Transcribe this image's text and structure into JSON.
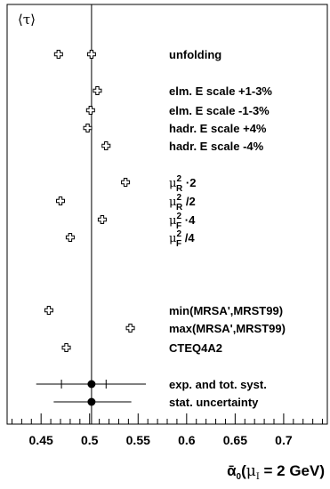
{
  "chart_data": {
    "type": "scatter",
    "title": "",
    "ylabel": "⟨τ⟩",
    "xlabel": {
      "alpha": "ᾱ",
      "sub0": "0",
      "paren_open": "(",
      "mu": "μ",
      "sub_I": "I",
      "rest": " = 2 GeV)"
    },
    "xlim": [
      0.415,
      0.745
    ],
    "x_ticks": [
      "0.45",
      "0.5",
      "0.55",
      "0.6",
      "0.65",
      "0.7"
    ],
    "reference_line": 0.502,
    "points": [
      {
        "label": "unfolding",
        "values": [
          0.468,
          0.502
        ]
      },
      {
        "label": "elm. E scale +1-3%",
        "values": [
          0.508
        ]
      },
      {
        "label": "elm. E scale -1-3%",
        "values": [
          0.501
        ]
      },
      {
        "label": "hadr. E scale +4%",
        "values": [
          0.498
        ]
      },
      {
        "label": "hadr. E scale -4%",
        "values": [
          0.517
        ]
      },
      {
        "label_parts": [
          "μ",
          "R",
          "2",
          " ·2"
        ],
        "values": [
          0.537
        ]
      },
      {
        "label_parts": [
          "μ",
          "R",
          "2",
          " /2"
        ],
        "values": [
          0.47
        ]
      },
      {
        "label_parts": [
          "μ",
          "F",
          "2",
          " ·4"
        ],
        "values": [
          0.513
        ]
      },
      {
        "label_parts": [
          "μ",
          "F",
          "2",
          " /4"
        ],
        "values": [
          0.48
        ]
      },
      {
        "label": "min(MRSA',MRST99)",
        "values": [
          0.458
        ]
      },
      {
        "label": "max(MRSA',MRST99)",
        "values": [
          0.542
        ]
      },
      {
        "label": "CTEQ4A2",
        "values": [
          0.476
        ]
      }
    ],
    "errors": [
      {
        "label": "exp. and tot. syst.",
        "center": 0.502,
        "tot": [
          0.445,
          0.558
        ],
        "inner": [
          0.471,
          0.517
        ]
      },
      {
        "label": "stat.  uncertainty",
        "center": 0.502,
        "tot": [
          0.463,
          0.543
        ]
      }
    ]
  }
}
